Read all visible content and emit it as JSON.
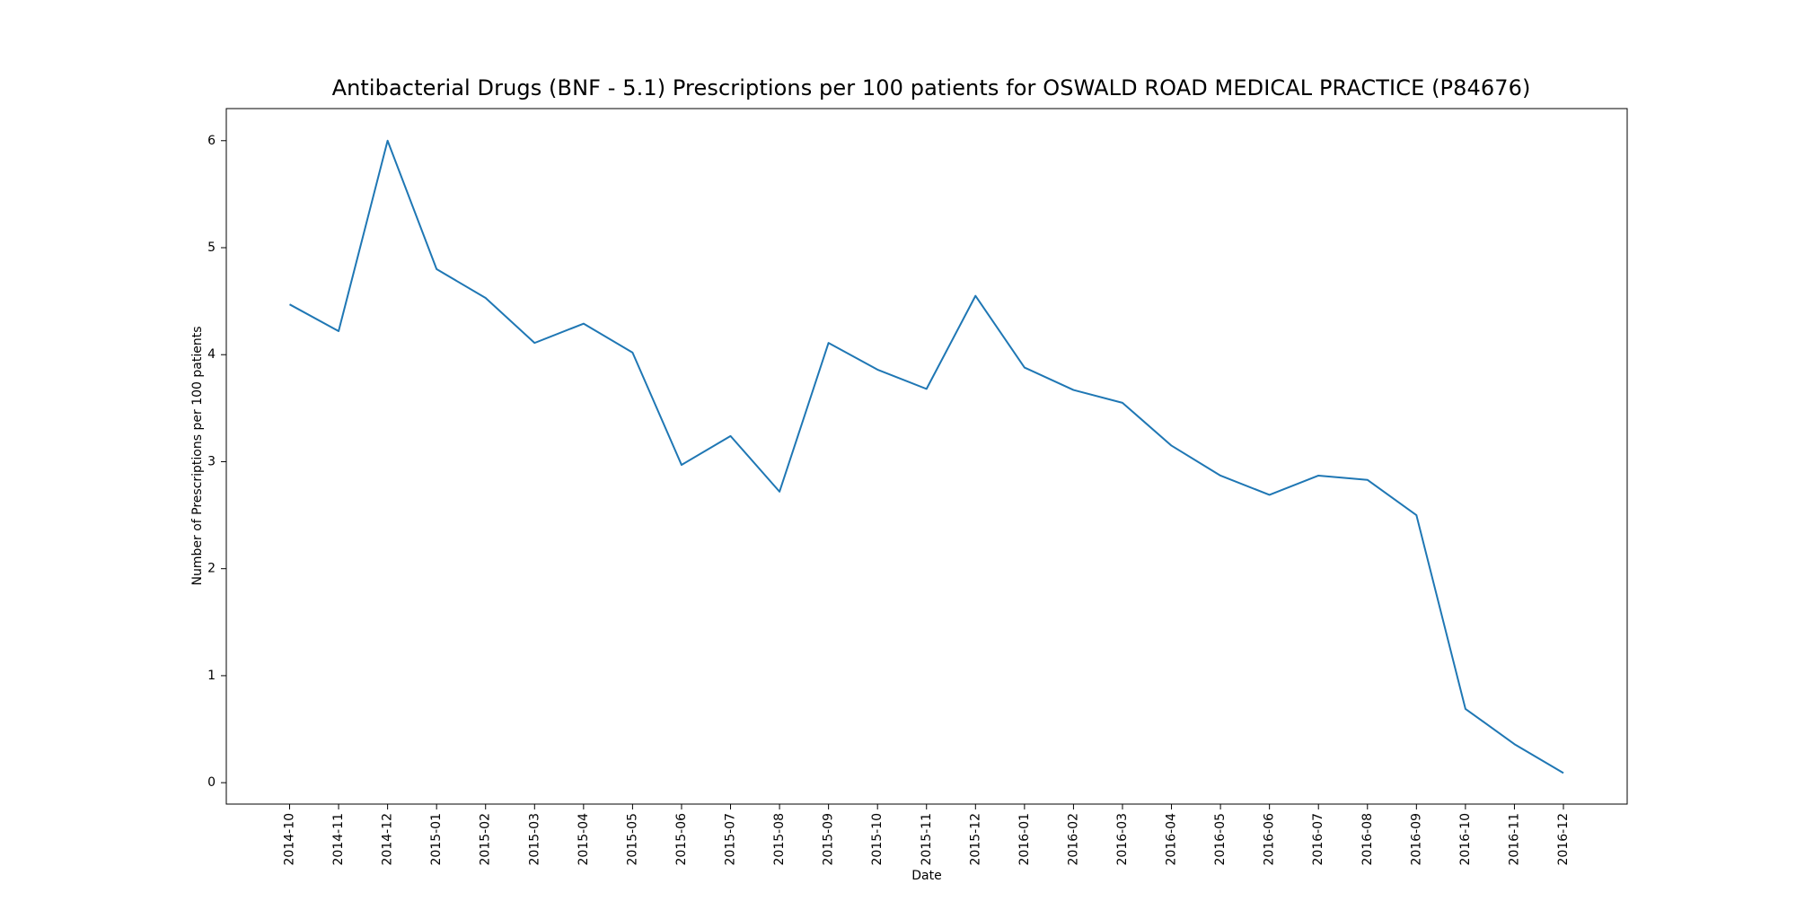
{
  "chart_data": {
    "type": "line",
    "title": "Antibacterial Drugs (BNF - 5.1) Prescriptions per 100 patients for OSWALD ROAD MEDICAL PRACTICE (P84676)",
    "xlabel": "Date",
    "ylabel": "Number of Prescriptions per 100 patients",
    "ylim": [
      -0.2,
      6.3
    ],
    "yticks": [
      "0",
      "1",
      "2",
      "3",
      "4",
      "5",
      "6"
    ],
    "grid": false,
    "legend": "none",
    "line_color": "#1f77b4",
    "categories": [
      "2014-10",
      "2014-11",
      "2014-12",
      "2015-01",
      "2015-02",
      "2015-03",
      "2015-04",
      "2015-05",
      "2015-06",
      "2015-07",
      "2015-08",
      "2015-09",
      "2015-10",
      "2015-11",
      "2015-12",
      "2016-01",
      "2016-02",
      "2016-03",
      "2016-04",
      "2016-05",
      "2016-06",
      "2016-07",
      "2016-08",
      "2016-09",
      "2016-10",
      "2016-11",
      "2016-12"
    ],
    "series": [
      {
        "values": [
          4.47,
          4.22,
          6.0,
          4.8,
          4.53,
          4.11,
          4.29,
          4.02,
          2.97,
          3.24,
          2.72,
          4.11,
          3.86,
          3.68,
          4.55,
          3.88,
          3.67,
          3.55,
          3.15,
          2.87,
          2.69,
          2.87,
          2.83,
          2.5,
          0.69,
          0.36,
          0.09
        ]
      }
    ]
  }
}
